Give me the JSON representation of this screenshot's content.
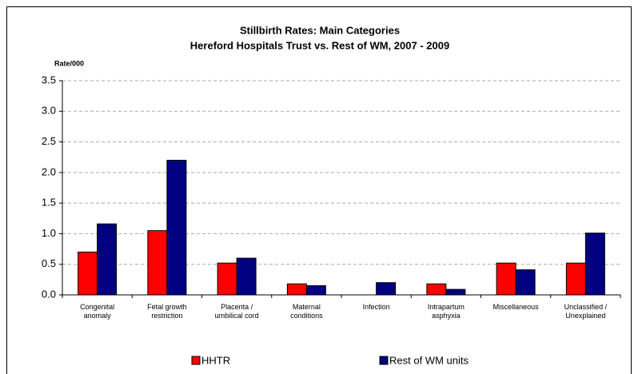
{
  "chart_data": {
    "type": "bar",
    "title": "Stillbirth Rates: Main Categories",
    "subtitle": "Hereford Hospitals Trust vs. Rest of WM, 2007 - 2009",
    "y_label": "Rate/000",
    "categories": [
      "Congenital\nanomaly",
      "Fetal growth\nrestriction",
      "Placenta /\numbilical cord",
      "Maternal\nconditions",
      "Infection",
      "Intrapartum\nasphyxia",
      "Miscellaneous",
      "Unclassified /\nUnexplained"
    ],
    "series": [
      {
        "name": "HHTR",
        "color": "#ff0000",
        "values": [
          0.7,
          1.05,
          0.52,
          0.18,
          0,
          0.18,
          0.52,
          0.52
        ]
      },
      {
        "name": "Rest of WM units",
        "color": "#000080",
        "values": [
          1.16,
          2.2,
          0.6,
          0.15,
          0.2,
          0.09,
          0.41,
          1.01
        ]
      }
    ],
    "ylim": [
      0,
      3.5
    ],
    "yticks": [
      {
        "value": 0,
        "label": "0.0"
      },
      0.5,
      {
        "value": 1,
        "label": "1.0"
      },
      1.5,
      {
        "value": 2,
        "label": "2.0"
      },
      2.5,
      {
        "value": 3,
        "label": "3.0"
      },
      3.5
    ],
    "grid": true,
    "legend": "bottom"
  }
}
